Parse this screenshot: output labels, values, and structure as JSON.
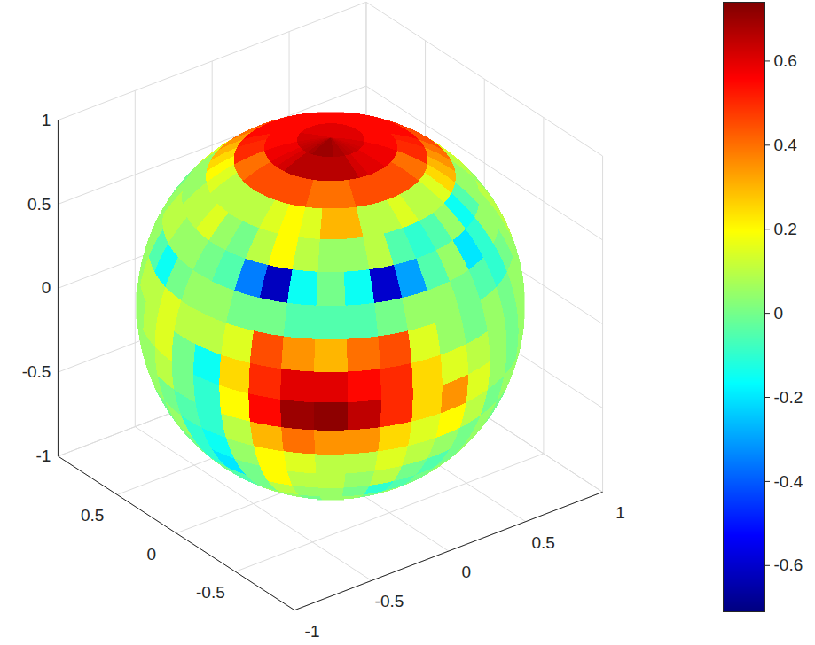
{
  "chart_data": {
    "type": "sphere",
    "xlim": [
      -1,
      1
    ],
    "ylim": [
      -1,
      1
    ],
    "zlim": [
      -1,
      1
    ],
    "xticks": [
      -1,
      -0.5,
      0,
      0.5,
      1
    ],
    "yticks": [
      -0.5,
      0,
      0.5
    ],
    "zticks": [
      -1,
      -0.5,
      0,
      0.5,
      1
    ],
    "grid": true,
    "color_range": [
      -0.71,
      0.74
    ],
    "color_ticks": [
      -0.6,
      -0.4,
      -0.2,
      0,
      0.2,
      0.4,
      0.6
    ],
    "cells": {
      "lon": [
        -177.5,
        -167.5,
        -157.5,
        -147.5,
        -137.5,
        -127.5,
        -117.5,
        -107.5,
        -97.5,
        -87.5,
        -77.5,
        -67.5,
        -57.5,
        -47.5,
        -37.5,
        -27.5,
        -17.5,
        -7.5,
        2.5,
        12.5,
        22.5,
        32.5,
        42.5,
        52.5,
        62.5,
        72.5,
        82.5,
        92.5,
        102.5,
        112.5,
        122.5,
        132.5,
        142.5,
        152.5,
        162.5,
        172.5
      ],
      "lat": [
        85,
        75,
        65,
        55,
        45,
        35,
        25,
        15,
        5,
        -5,
        -15,
        -25,
        -35,
        -45,
        -55
      ],
      "values": [
        [
          0.66,
          0.68,
          0.7,
          0.7,
          0.7,
          0.7,
          0.68,
          0.68,
          0.66,
          0.65,
          0.64,
          0.63,
          0.62,
          0.62,
          0.6,
          0.6,
          0.6,
          0.6,
          0.6,
          0.6,
          0.6,
          0.6,
          0.6,
          0.6,
          0.6,
          0.6,
          0.6,
          0.6,
          0.6,
          0.6,
          0.62,
          0.62,
          0.62,
          0.63,
          0.64,
          0.65
        ],
        [
          0.62,
          0.66,
          0.66,
          0.66,
          0.66,
          0.66,
          0.66,
          0.66,
          0.62,
          0.6,
          0.6,
          0.58,
          0.58,
          0.58,
          0.55,
          0.55,
          0.55,
          0.55,
          0.55,
          0.55,
          0.55,
          0.55,
          0.55,
          0.55,
          0.55,
          0.55,
          0.55,
          0.55,
          0.55,
          0.55,
          0.55,
          0.55,
          0.55,
          0.58,
          0.58,
          0.6
        ],
        [
          0.45,
          0.45,
          0.45,
          0.45,
          0.4,
          0.4,
          0.4,
          0.45,
          0.45,
          0.45,
          0.45,
          0.45,
          0.4,
          0.4,
          0.5,
          0.5,
          0.52,
          0.55,
          0.55,
          0.55,
          0.55,
          0.55,
          0.55,
          0.55,
          0.55,
          0.55,
          0.55,
          0.55,
          0.55,
          0.55,
          0.52,
          0.5,
          0.5,
          0.4,
          0.4,
          0.45
        ],
        [
          0.1,
          0.1,
          0.15,
          0.2,
          0.15,
          0.3,
          0.3,
          0.1,
          0.1,
          0.15,
          0.1,
          0.1,
          0.15,
          0.25,
          0.3,
          0.35,
          0.4,
          0.45,
          0.45,
          0.5,
          0.5,
          0.55,
          0.55,
          0.55,
          0.55,
          0.5,
          0.5,
          0.45,
          0.4,
          0.35,
          0.3,
          0.25,
          0.2,
          0.15,
          0.1,
          0.1
        ],
        [
          0.05,
          0,
          0.1,
          0.2,
          0.1,
          0.05,
          0.05,
          0.1,
          -0.05,
          -0.1,
          -0.05,
          0.05,
          -0.15,
          -0.05,
          0.05,
          0.05,
          0.1,
          0.15,
          0.2,
          null,
          null,
          null,
          null,
          null,
          null,
          null,
          null,
          null,
          0.2,
          0.15,
          0.05,
          0.05,
          0.05,
          0.1,
          0.1,
          0.15
        ],
        [
          0,
          -0.05,
          -0.35,
          -0.62,
          -0.15,
          0,
          -0.15,
          -0.6,
          -0.3,
          -0.05,
          0.05,
          -0.2,
          -0.1,
          0.05,
          0.05,
          0.1,
          0.05,
          0.05,
          null,
          null,
          null,
          null,
          null,
          null,
          null,
          null,
          null,
          null,
          null,
          0.05,
          0,
          0.05,
          0.1,
          0.1,
          0.05,
          0.05
        ],
        [
          0.05,
          0.05,
          0,
          0,
          -0.05,
          -0.05,
          -0.05,
          0,
          0.05,
          0.05,
          0,
          -0.05,
          -0.1,
          0,
          0.05,
          0.1,
          0.05,
          null,
          null,
          null,
          null,
          null,
          null,
          null,
          null,
          null,
          null,
          null,
          null,
          null,
          0.1,
          0.05,
          0.05,
          -0.05,
          -0.15,
          0
        ],
        [
          0.1,
          0.1,
          0.15,
          0.45,
          0.35,
          0.3,
          0.4,
          0.45,
          0.15,
          0.05,
          0,
          0.05,
          0,
          0.05,
          0.05,
          0.05,
          null,
          null,
          null,
          null,
          null,
          null,
          null,
          null,
          null,
          null,
          null,
          null,
          null,
          null,
          null,
          0.05,
          0.05,
          0.1,
          0.1,
          0.15
        ],
        [
          0,
          -0.15,
          0.25,
          0.5,
          0.6,
          0.6,
          0.55,
          0.5,
          0.25,
          0.15,
          0.1,
          0.05,
          0,
          0.05,
          0.05,
          0.05,
          null,
          null,
          null,
          null,
          null,
          null,
          null,
          null,
          null,
          null,
          null,
          null,
          null,
          null,
          null,
          0.05,
          0.05,
          0.05,
          0.1,
          0.15
        ],
        [
          0,
          -0.1,
          0.2,
          0.55,
          0.7,
          0.72,
          0.65,
          0.5,
          0.25,
          0.35,
          0.15,
          0.05,
          0,
          0.05,
          0.05,
          null,
          null,
          null,
          null,
          null,
          null,
          null,
          null,
          null,
          null,
          null,
          null,
          null,
          null,
          null,
          null,
          null,
          0.05,
          0.05,
          0.05,
          0.1
        ],
        [
          -0.05,
          -0.1,
          0.1,
          0.3,
          0.4,
          0.35,
          0.35,
          0.25,
          0.15,
          0.2,
          0.1,
          0,
          0.05,
          0.05,
          null,
          null,
          null,
          null,
          null,
          null,
          null,
          null,
          null,
          null,
          null,
          null,
          null,
          null,
          null,
          null,
          null,
          null,
          null,
          0.05,
          0.05,
          0
        ],
        [
          -0.1,
          -0.15,
          0.05,
          0.2,
          0.15,
          0.1,
          0.1,
          0.15,
          0.1,
          0.05,
          0,
          0.05,
          0,
          0.05,
          null,
          null,
          null,
          null,
          null,
          null,
          null,
          null,
          null,
          null,
          null,
          null,
          null,
          null,
          null,
          null,
          null,
          null,
          null,
          0.05,
          0,
          0.05
        ],
        [
          -0.1,
          -0.2,
          0,
          0.2,
          0.1,
          0.1,
          0.05,
          0.1,
          0,
          -0.05,
          0,
          0.05,
          0.05,
          null,
          null,
          null,
          null,
          null,
          null,
          null,
          null,
          null,
          null,
          null,
          null,
          null,
          null,
          null,
          null,
          null,
          null,
          null,
          null,
          null,
          0.05,
          0
        ],
        [
          0,
          -0.05,
          0,
          0.1,
          0.05,
          0.05,
          0,
          -0.1,
          -0.05,
          0,
          0.05,
          0.05,
          null,
          null,
          null,
          null,
          null,
          null,
          null,
          null,
          null,
          null,
          null,
          null,
          null,
          null,
          null,
          null,
          null,
          null,
          null,
          null,
          null,
          null,
          null,
          0.05
        ],
        [
          0.05,
          0,
          0.05,
          0.05,
          0,
          0.05,
          0.05,
          0,
          0.05,
          0.05,
          0.05,
          null,
          null,
          null,
          null,
          null,
          null,
          null,
          null,
          null,
          null,
          null,
          null,
          null,
          null,
          null,
          null,
          null,
          null,
          null,
          null,
          null,
          null,
          null,
          null,
          null
        ]
      ]
    }
  }
}
